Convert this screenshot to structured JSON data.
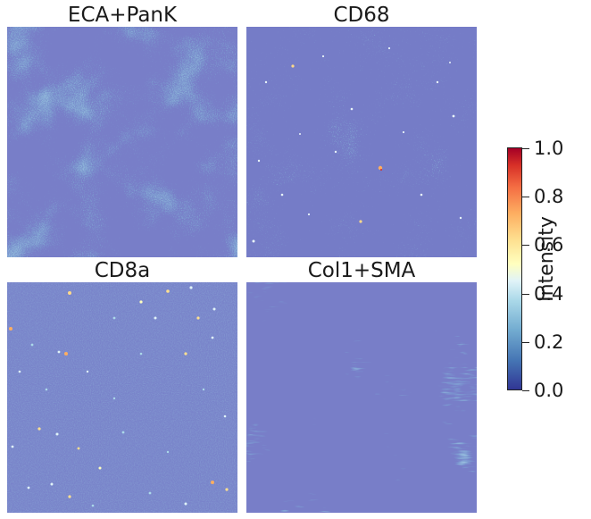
{
  "figure": {
    "panels": [
      {
        "title": "ECA+PanK"
      },
      {
        "title": "CD68"
      },
      {
        "title": "CD8a"
      },
      {
        "title": "Col1+SMA"
      }
    ],
    "colorbar": {
      "label": "Intensity",
      "colormap": "RdYlBu_r",
      "range": [
        0.0,
        1.0
      ],
      "ticks": [
        "0.0",
        "0.2",
        "0.4",
        "0.6",
        "0.8",
        "1.0"
      ],
      "colors": {
        "low": "#313695",
        "mid": "#ffffbf",
        "high": "#a50026"
      }
    }
  }
}
